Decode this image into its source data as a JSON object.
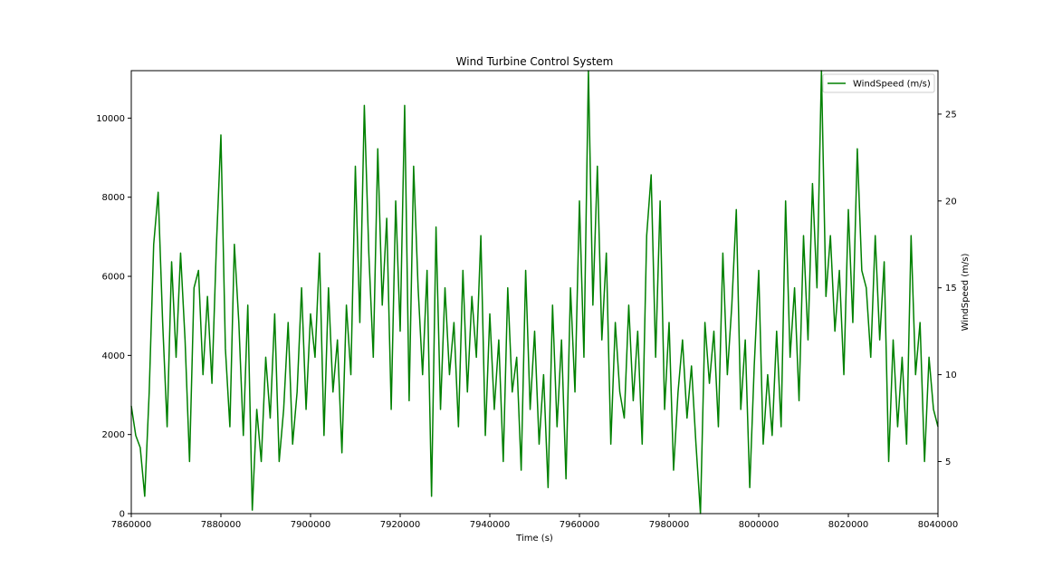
{
  "chart_data": {
    "type": "line",
    "title": "Wind Turbine Control System",
    "xlabel": "Time (s)",
    "ylabel_left": "",
    "ylabel_right": "WindSpeed (m/s)",
    "xlim": [
      7860000,
      8040000
    ],
    "ylim_left": [
      0,
      11200
    ],
    "ylim_right": [
      2.0,
      27.5
    ],
    "x_ticks": [
      7860000,
      7880000,
      7900000,
      7920000,
      7940000,
      7960000,
      7980000,
      8000000,
      8020000,
      8040000
    ],
    "x_tick_labels": [
      "7860000",
      "7880000",
      "7900000",
      "7920000",
      "7940000",
      "7960000",
      "7980000",
      "8000000",
      "8020000",
      "8040000"
    ],
    "y_left_ticks": [
      0,
      2000,
      4000,
      6000,
      8000,
      10000
    ],
    "y_left_tick_labels": [
      "0",
      "2000",
      "4000",
      "6000",
      "8000",
      "10000"
    ],
    "y_right_ticks": [
      5,
      10,
      15,
      20,
      25
    ],
    "y_right_tick_labels": [
      "5",
      "10",
      "15",
      "20",
      "25"
    ],
    "grid": false,
    "legend": {
      "position": "top-right",
      "entries": [
        "WindSpeed (m/s)"
      ]
    },
    "series": [
      {
        "name": "WindSpeed (m/s)",
        "color": "#008000",
        "axis": "right",
        "x": [
          7860000,
          7861000,
          7862000,
          7863000,
          7864000,
          7865000,
          7866000,
          7867000,
          7868000,
          7869000,
          7870000,
          7871000,
          7872000,
          7873000,
          7874000,
          7875000,
          7876000,
          7877000,
          7878000,
          7879000,
          7880000,
          7881000,
          7882000,
          7883000,
          7884000,
          7885000,
          7886000,
          7887000,
          7888000,
          7889000,
          7890000,
          7891000,
          7892000,
          7893000,
          7894000,
          7895000,
          7896000,
          7897000,
          7898000,
          7899000,
          7900000,
          7901000,
          7902000,
          7903000,
          7904000,
          7905000,
          7906000,
          7907000,
          7908000,
          7909000,
          7910000,
          7911000,
          7912000,
          7913000,
          7914000,
          7915000,
          7916000,
          7917000,
          7918000,
          7919000,
          7920000,
          7921000,
          7922000,
          7923000,
          7924000,
          7925000,
          7926000,
          7927000,
          7928000,
          7929000,
          7930000,
          7931000,
          7932000,
          7933000,
          7934000,
          7935000,
          7936000,
          7937000,
          7938000,
          7939000,
          7940000,
          7941000,
          7942000,
          7943000,
          7944000,
          7945000,
          7946000,
          7947000,
          7948000,
          7949000,
          7950000,
          7951000,
          7952000,
          7953000,
          7954000,
          7955000,
          7956000,
          7957000,
          7958000,
          7959000,
          7960000,
          7961000,
          7962000,
          7963000,
          7964000,
          7965000,
          7966000,
          7967000,
          7968000,
          7969000,
          7970000,
          7971000,
          7972000,
          7973000,
          7974000,
          7975000,
          7976000,
          7977000,
          7978000,
          7979000,
          7980000,
          7981000,
          7982000,
          7983000,
          7984000,
          7985000,
          7986000,
          7987000,
          7988000,
          7989000,
          7990000,
          7991000,
          7992000,
          7993000,
          7994000,
          7995000,
          7996000,
          7997000,
          7998000,
          7999000,
          8000000,
          8001000,
          8002000,
          8003000,
          8004000,
          8005000,
          8006000,
          8007000,
          8008000,
          8009000,
          8010000,
          8011000,
          8012000,
          8013000,
          8014000,
          8015000,
          8016000,
          8017000,
          8018000,
          8019000,
          8020000,
          8021000,
          8022000,
          8023000,
          8024000,
          8025000,
          8026000,
          8027000,
          8028000,
          8029000,
          8030000,
          8031000,
          8032000,
          8033000,
          8034000,
          8035000,
          8036000,
          8037000,
          8038000,
          8039000,
          8040000
        ],
        "values": [
          8.2,
          6.5,
          5.8,
          3.0,
          9.0,
          17.5,
          20.5,
          13.0,
          7.0,
          16.5,
          11.0,
          17.0,
          12.0,
          5.0,
          15.0,
          16.0,
          10.0,
          14.5,
          9.5,
          17.5,
          23.8,
          11.5,
          7.0,
          17.5,
          13.0,
          6.5,
          14.0,
          2.2,
          8.0,
          5.0,
          11.0,
          7.5,
          13.5,
          5.0,
          8.0,
          13.0,
          6.0,
          9.0,
          15.0,
          8.0,
          13.5,
          11.0,
          17.0,
          6.5,
          15.0,
          9.0,
          12.0,
          5.5,
          14.0,
          10.0,
          22.0,
          13.0,
          25.5,
          17.0,
          11.0,
          23.0,
          14.0,
          19.0,
          8.0,
          20.0,
          12.5,
          25.5,
          8.5,
          22.0,
          15.0,
          10.0,
          16.0,
          3.0,
          18.5,
          8.0,
          15.0,
          10.0,
          13.0,
          7.0,
          16.0,
          9.0,
          14.5,
          11.0,
          18.0,
          6.5,
          13.5,
          8.0,
          12.0,
          5.0,
          15.0,
          9.0,
          11.0,
          4.5,
          16.0,
          8.0,
          12.5,
          6.0,
          10.0,
          3.5,
          14.0,
          7.0,
          12.0,
          4.0,
          15.0,
          9.0,
          20.0,
          11.0,
          27.5,
          14.0,
          22.0,
          12.0,
          17.0,
          6.0,
          13.0,
          9.0,
          7.5,
          14.0,
          8.5,
          12.5,
          6.0,
          18.0,
          21.5,
          11.0,
          20.0,
          8.0,
          13.0,
          4.5,
          9.0,
          12.0,
          7.5,
          10.5,
          6.0,
          2.0,
          13.0,
          9.5,
          12.5,
          7.0,
          17.0,
          10.0,
          14.0,
          19.5,
          8.0,
          12.0,
          3.5,
          10.5,
          16.0,
          6.0,
          10.0,
          6.5,
          12.5,
          7.0,
          20.0,
          11.0,
          15.0,
          8.5,
          18.0,
          12.0,
          21.0,
          15.0,
          27.5,
          14.5,
          18.0,
          12.5,
          16.0,
          10.0,
          19.5,
          13.0,
          23.0,
          16.0,
          15.0,
          11.0,
          18.0,
          12.0,
          16.5,
          5.0,
          12.0,
          7.0,
          11.0,
          6.0,
          18.0,
          10.0,
          13.0,
          5.0,
          11.0,
          8.0,
          7.0
        ],
        "note_type": "unused"
      }
    ]
  }
}
